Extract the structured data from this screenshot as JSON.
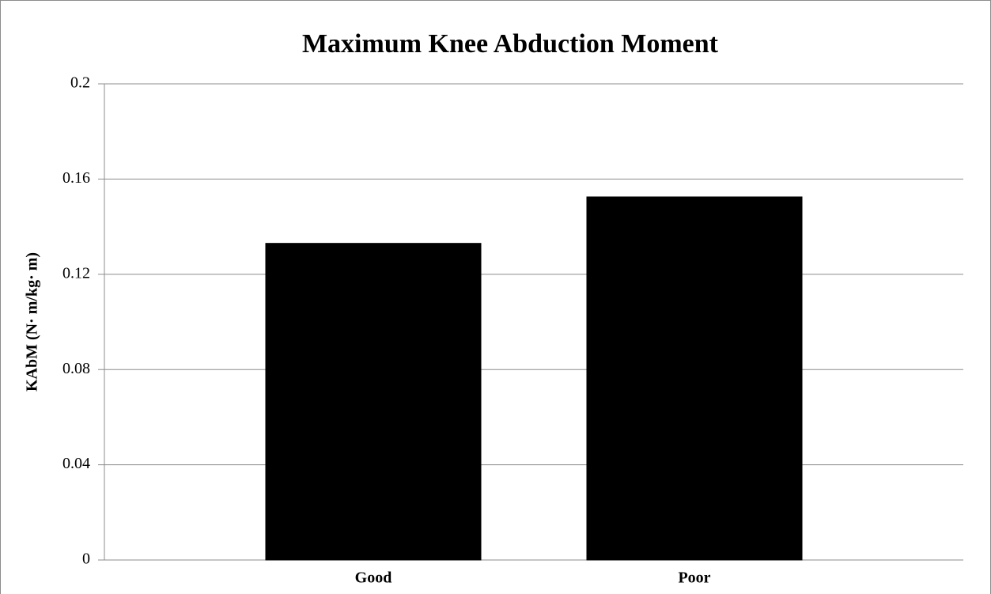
{
  "chart_data": {
    "type": "bar",
    "title": "Maximum Knee Abduction Moment",
    "y_label": "KAbM (N· m/kg· m)",
    "categories": [
      "Good",
      "Poor"
    ],
    "values": [
      0.133,
      0.1525
    ],
    "color": "#000000",
    "ylim": [
      0,
      0.2
    ],
    "yticks": [
      0,
      0.04,
      0.08,
      0.12,
      0.16,
      0.2
    ],
    "grid": true
  }
}
